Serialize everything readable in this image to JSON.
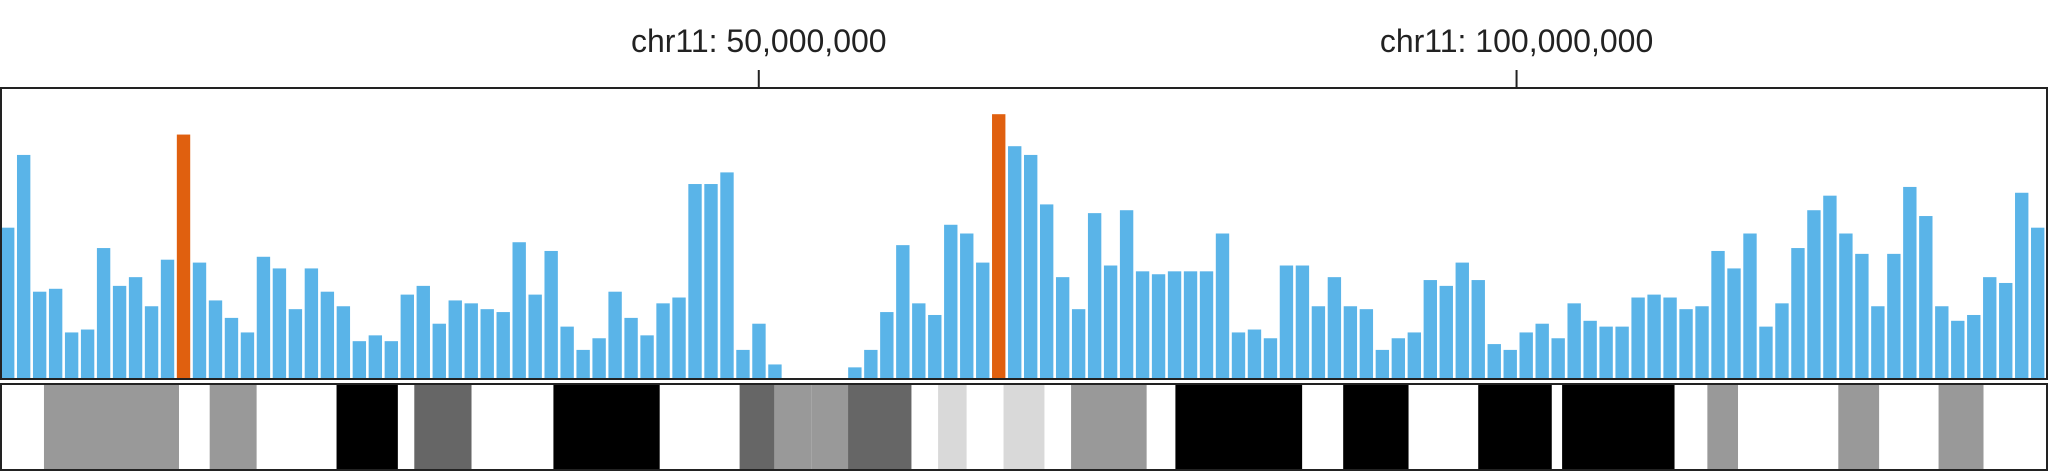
{
  "chart_data": {
    "type": "bar",
    "x_axis": {
      "min": 0,
      "max": 135000000,
      "ticks": [
        {
          "value": 50000000,
          "label": "chr11: 50,000,000"
        },
        {
          "value": 100000000,
          "label": "chr11: 100,000,000"
        }
      ]
    },
    "ylim": [
      0,
      100
    ],
    "colors": {
      "bar": "#5ab4e8",
      "highlight": "#e0600f",
      "frame": "#222222"
    },
    "bins": [
      {
        "v": 52
      },
      {
        "v": 77
      },
      {
        "v": 30
      },
      {
        "v": 31
      },
      {
        "v": 16
      },
      {
        "v": 17
      },
      {
        "v": 45
      },
      {
        "v": 32
      },
      {
        "v": 35
      },
      {
        "v": 25
      },
      {
        "v": 41
      },
      {
        "v": 84,
        "highlight": true
      },
      {
        "v": 40
      },
      {
        "v": 27
      },
      {
        "v": 21
      },
      {
        "v": 16
      },
      {
        "v": 42
      },
      {
        "v": 38
      },
      {
        "v": 24
      },
      {
        "v": 38
      },
      {
        "v": 30
      },
      {
        "v": 25
      },
      {
        "v": 13
      },
      {
        "v": 15
      },
      {
        "v": 13
      },
      {
        "v": 29
      },
      {
        "v": 32
      },
      {
        "v": 19
      },
      {
        "v": 27
      },
      {
        "v": 26
      },
      {
        "v": 24
      },
      {
        "v": 23
      },
      {
        "v": 47
      },
      {
        "v": 29
      },
      {
        "v": 44
      },
      {
        "v": 18
      },
      {
        "v": 10
      },
      {
        "v": 14
      },
      {
        "v": 30
      },
      {
        "v": 21
      },
      {
        "v": 15
      },
      {
        "v": 26
      },
      {
        "v": 28
      },
      {
        "v": 67
      },
      {
        "v": 67
      },
      {
        "v": 71
      },
      {
        "v": 10
      },
      {
        "v": 19
      },
      {
        "v": 5
      },
      {
        "v": 0
      },
      {
        "v": 0
      },
      {
        "v": 0
      },
      {
        "v": 0
      },
      {
        "v": 4
      },
      {
        "v": 10
      },
      {
        "v": 23
      },
      {
        "v": 46
      },
      {
        "v": 26
      },
      {
        "v": 22
      },
      {
        "v": 53
      },
      {
        "v": 50
      },
      {
        "v": 40
      },
      {
        "v": 91,
        "highlight": true
      },
      {
        "v": 80
      },
      {
        "v": 77
      },
      {
        "v": 60
      },
      {
        "v": 35
      },
      {
        "v": 24
      },
      {
        "v": 57
      },
      {
        "v": 39
      },
      {
        "v": 58
      },
      {
        "v": 37
      },
      {
        "v": 36
      },
      {
        "v": 37
      },
      {
        "v": 37
      },
      {
        "v": 37
      },
      {
        "v": 50
      },
      {
        "v": 16
      },
      {
        "v": 17
      },
      {
        "v": 14
      },
      {
        "v": 39
      },
      {
        "v": 39
      },
      {
        "v": 25
      },
      {
        "v": 35
      },
      {
        "v": 25
      },
      {
        "v": 24
      },
      {
        "v": 10
      },
      {
        "v": 14
      },
      {
        "v": 16
      },
      {
        "v": 34
      },
      {
        "v": 32
      },
      {
        "v": 40
      },
      {
        "v": 34
      },
      {
        "v": 12
      },
      {
        "v": 10
      },
      {
        "v": 16
      },
      {
        "v": 19
      },
      {
        "v": 14
      },
      {
        "v": 26
      },
      {
        "v": 20
      },
      {
        "v": 18
      },
      {
        "v": 18
      },
      {
        "v": 28
      },
      {
        "v": 29
      },
      {
        "v": 28
      },
      {
        "v": 24
      },
      {
        "v": 25
      },
      {
        "v": 44
      },
      {
        "v": 38
      },
      {
        "v": 50
      },
      {
        "v": 18
      },
      {
        "v": 26
      },
      {
        "v": 45
      },
      {
        "v": 58
      },
      {
        "v": 63
      },
      {
        "v": 50
      },
      {
        "v": 43
      },
      {
        "v": 25
      },
      {
        "v": 43
      },
      {
        "v": 66
      },
      {
        "v": 56
      },
      {
        "v": 25
      },
      {
        "v": 20
      },
      {
        "v": 22
      },
      {
        "v": 35
      },
      {
        "v": 33
      },
      {
        "v": 64
      },
      {
        "v": 52
      }
    ],
    "cytobands": [
      {
        "start": 0.0,
        "end": 0.021,
        "color": "#ffffff"
      },
      {
        "start": 0.021,
        "end": 0.087,
        "color": "#999999"
      },
      {
        "start": 0.087,
        "end": 0.102,
        "color": "#ffffff"
      },
      {
        "start": 0.102,
        "end": 0.125,
        "color": "#999999"
      },
      {
        "start": 0.125,
        "end": 0.164,
        "color": "#ffffff"
      },
      {
        "start": 0.164,
        "end": 0.194,
        "color": "#000000"
      },
      {
        "start": 0.194,
        "end": 0.202,
        "color": "#ffffff"
      },
      {
        "start": 0.202,
        "end": 0.23,
        "color": "#666666"
      },
      {
        "start": 0.23,
        "end": 0.27,
        "color": "#ffffff"
      },
      {
        "start": 0.27,
        "end": 0.322,
        "color": "#000000"
      },
      {
        "start": 0.322,
        "end": 0.361,
        "color": "#ffffff"
      },
      {
        "start": 0.361,
        "end": 0.378,
        "color": "#666666"
      },
      {
        "start": 0.378,
        "end": 0.396,
        "color": "#999999"
      },
      {
        "start": 0.396,
        "end": 0.414,
        "color": "#999999"
      },
      {
        "start": 0.414,
        "end": 0.445,
        "color": "#666666"
      },
      {
        "start": 0.445,
        "end": 0.458,
        "color": "#ffffff"
      },
      {
        "start": 0.458,
        "end": 0.472,
        "color": "#d9d9d9"
      },
      {
        "start": 0.472,
        "end": 0.49,
        "color": "#ffffff"
      },
      {
        "start": 0.49,
        "end": 0.51,
        "color": "#d9d9d9"
      },
      {
        "start": 0.51,
        "end": 0.523,
        "color": "#ffffff"
      },
      {
        "start": 0.523,
        "end": 0.56,
        "color": "#999999"
      },
      {
        "start": 0.56,
        "end": 0.574,
        "color": "#ffffff"
      },
      {
        "start": 0.574,
        "end": 0.636,
        "color": "#000000"
      },
      {
        "start": 0.636,
        "end": 0.656,
        "color": "#ffffff"
      },
      {
        "start": 0.656,
        "end": 0.688,
        "color": "#000000"
      },
      {
        "start": 0.688,
        "end": 0.722,
        "color": "#ffffff"
      },
      {
        "start": 0.722,
        "end": 0.758,
        "color": "#000000"
      },
      {
        "start": 0.758,
        "end": 0.763,
        "color": "#ffffff"
      },
      {
        "start": 0.763,
        "end": 0.818,
        "color": "#000000"
      },
      {
        "start": 0.818,
        "end": 0.834,
        "color": "#ffffff"
      },
      {
        "start": 0.834,
        "end": 0.849,
        "color": "#999999"
      },
      {
        "start": 0.849,
        "end": 0.898,
        "color": "#ffffff"
      },
      {
        "start": 0.898,
        "end": 0.918,
        "color": "#999999"
      },
      {
        "start": 0.918,
        "end": 0.947,
        "color": "#ffffff"
      },
      {
        "start": 0.947,
        "end": 0.969,
        "color": "#999999"
      },
      {
        "start": 0.969,
        "end": 1.0,
        "color": "#ffffff"
      }
    ]
  }
}
